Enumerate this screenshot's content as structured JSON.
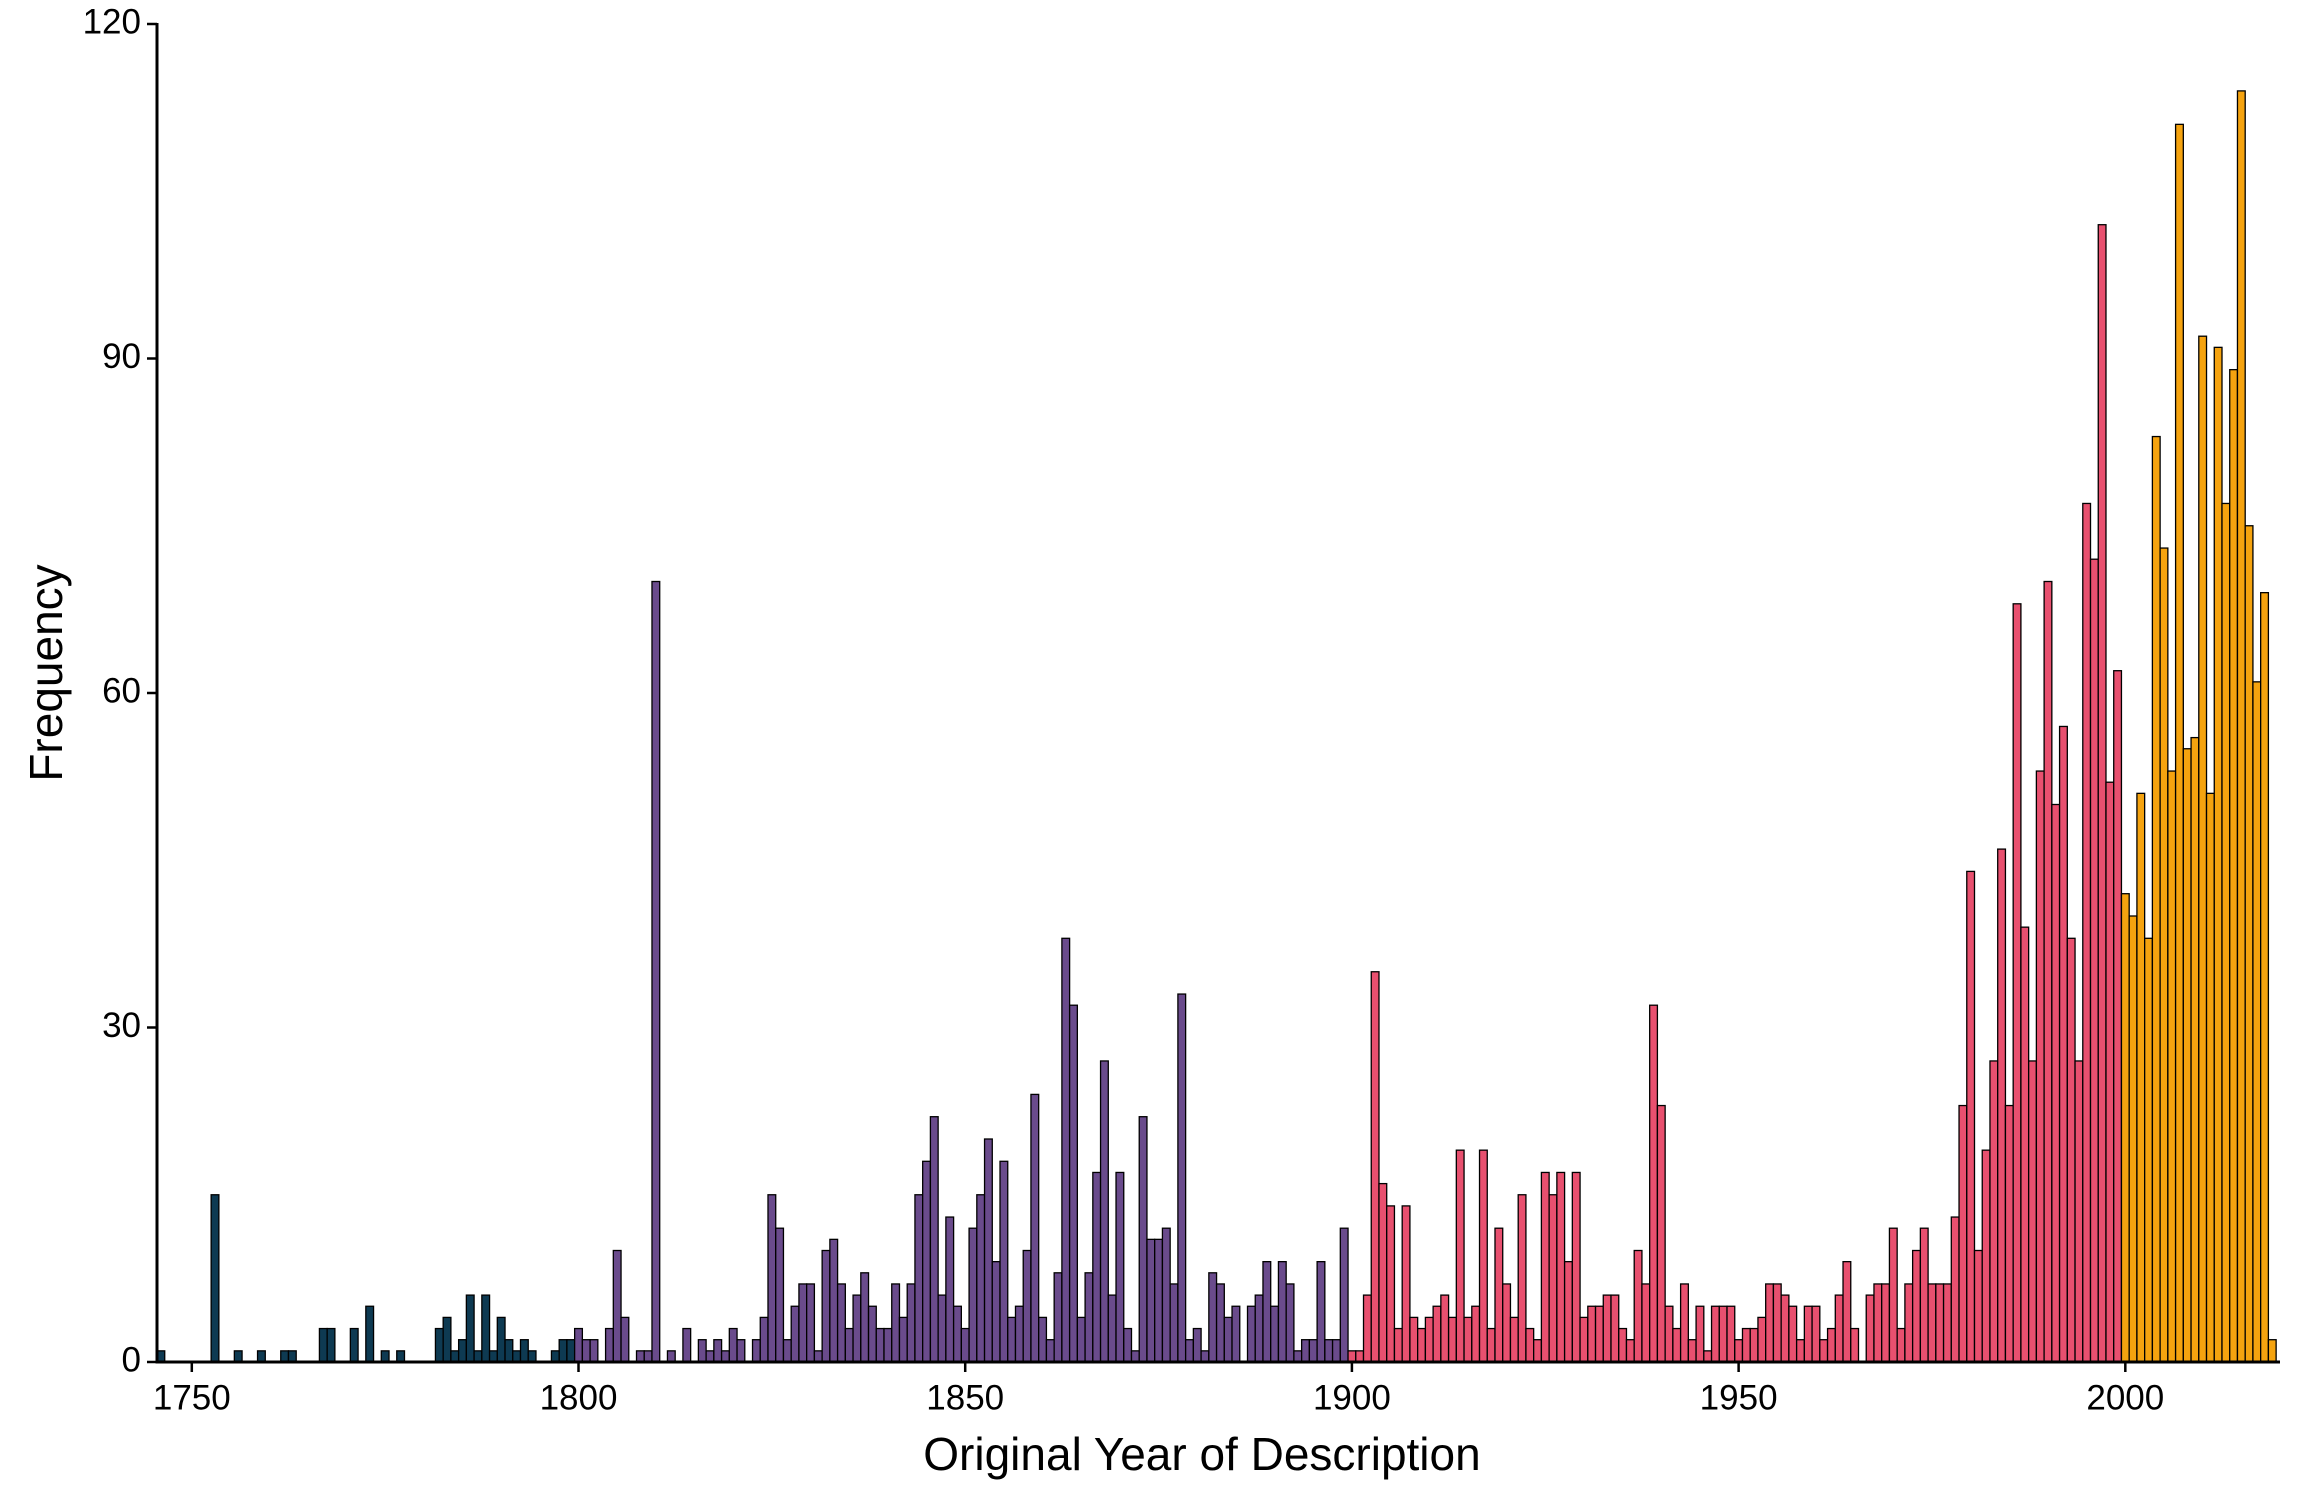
{
  "chart_data": {
    "type": "histogram",
    "x_label": "Original Year of Description",
    "y_label": "Frequency",
    "xlim": [
      1745.5,
      2020
    ],
    "ylim": [
      0,
      120
    ],
    "xticks": [
      1750,
      1800,
      1850,
      1900,
      1950,
      2000
    ],
    "yticks": [
      0,
      30,
      60,
      90,
      120
    ],
    "grid": false,
    "series": [
      {
        "color": "#0e3a52",
        "bins": [
          1745.5,
          1746.5,
          1747.5,
          1748.5,
          1749.5,
          1750.5,
          1751.5,
          1752.5,
          1753.5,
          1754.5,
          1755.5,
          1756.5,
          1757.5,
          1758.5,
          1759.5,
          1760.5,
          1761.5,
          1762.5,
          1763.5,
          1764.5,
          1765.5,
          1766.5,
          1767.5,
          1768.5,
          1769.5,
          1770.5,
          1771.5,
          1772.5,
          1773.5,
          1774.5,
          1775.5,
          1776.5,
          1777.5,
          1778.5,
          1779.5,
          1780.5,
          1781.5,
          1782.5,
          1783.5,
          1784.5,
          1785.5,
          1786.5,
          1787.5,
          1788.5,
          1789.5,
          1790.5,
          1791.5,
          1792.5,
          1793.5,
          1794.5,
          1795.5,
          1796.5,
          1797.5,
          1798.5,
          1799.5
        ],
        "values": [
          1,
          0,
          0,
          0,
          0,
          0,
          0,
          15,
          0,
          0,
          1,
          0,
          0,
          1,
          0,
          0,
          1,
          1,
          0,
          0,
          0,
          3,
          3,
          0,
          0,
          3,
          0,
          5,
          0,
          1,
          0,
          1,
          0,
          0,
          0,
          0,
          3,
          4,
          1,
          2,
          6,
          1,
          6,
          1,
          4,
          2,
          1,
          2,
          1,
          0,
          0,
          1,
          2,
          2
        ]
      },
      {
        "color": "#6a4b8c",
        "bins": [
          1799.5,
          1800.5,
          1801.5,
          1802.5,
          1803.5,
          1804.5,
          1805.5,
          1806.5,
          1807.5,
          1808.5,
          1809.5,
          1810.5,
          1811.5,
          1812.5,
          1813.5,
          1814.5,
          1815.5,
          1816.5,
          1817.5,
          1818.5,
          1819.5,
          1820.5,
          1821.5,
          1822.5,
          1823.5,
          1824.5,
          1825.5,
          1826.5,
          1827.5,
          1828.5,
          1829.5,
          1830.5,
          1831.5,
          1832.5,
          1833.5,
          1834.5,
          1835.5,
          1836.5,
          1837.5,
          1838.5,
          1839.5,
          1840.5,
          1841.5,
          1842.5,
          1843.5,
          1844.5,
          1845.5,
          1846.5,
          1847.5,
          1848.5,
          1849.5,
          1850.5,
          1851.5,
          1852.5,
          1853.5,
          1854.5,
          1855.5,
          1856.5,
          1857.5,
          1858.5,
          1859.5,
          1860.5,
          1861.5,
          1862.5,
          1863.5,
          1864.5,
          1865.5,
          1866.5,
          1867.5,
          1868.5,
          1869.5,
          1870.5,
          1871.5,
          1872.5,
          1873.5,
          1874.5,
          1875.5,
          1876.5,
          1877.5,
          1878.5,
          1879.5,
          1880.5,
          1881.5,
          1882.5,
          1883.5,
          1884.5,
          1885.5,
          1886.5,
          1887.5,
          1888.5,
          1889.5,
          1890.5,
          1891.5,
          1892.5,
          1893.5,
          1894.5,
          1895.5,
          1896.5,
          1897.5,
          1898.5,
          1899.5
        ],
        "values": [
          3,
          2,
          2,
          0,
          3,
          10,
          4,
          0,
          1,
          1,
          70,
          0,
          1,
          0,
          3,
          0,
          2,
          1,
          2,
          1,
          3,
          2,
          0,
          2,
          4,
          15,
          12,
          2,
          5,
          7,
          7,
          1,
          10,
          11,
          7,
          3,
          6,
          8,
          5,
          3,
          3,
          7,
          4,
          7,
          15,
          18,
          22,
          6,
          13,
          5,
          3,
          12,
          15,
          20,
          9,
          18,
          4,
          5,
          10,
          24,
          4,
          2,
          8,
          38,
          32,
          4,
          8,
          17,
          27,
          6,
          17,
          3,
          1,
          22,
          11,
          11,
          12,
          7,
          33,
          2,
          3,
          1,
          8,
          7,
          4,
          5,
          0,
          5,
          6,
          9,
          5,
          9,
          7,
          1,
          2,
          2,
          9,
          2,
          2,
          12
        ]
      },
      {
        "color": "#e8506f",
        "bins": [
          1899.5,
          1900.5,
          1901.5,
          1902.5,
          1903.5,
          1904.5,
          1905.5,
          1906.5,
          1907.5,
          1908.5,
          1909.5,
          1910.5,
          1911.5,
          1912.5,
          1913.5,
          1914.5,
          1915.5,
          1916.5,
          1917.5,
          1918.5,
          1919.5,
          1920.5,
          1921.5,
          1922.5,
          1923.5,
          1924.5,
          1925.5,
          1926.5,
          1927.5,
          1928.5,
          1929.5,
          1930.5,
          1931.5,
          1932.5,
          1933.5,
          1934.5,
          1935.5,
          1936.5,
          1937.5,
          1938.5,
          1939.5,
          1940.5,
          1941.5,
          1942.5,
          1943.5,
          1944.5,
          1945.5,
          1946.5,
          1947.5,
          1948.5,
          1949.5,
          1950.5,
          1951.5,
          1952.5,
          1953.5,
          1954.5,
          1955.5,
          1956.5,
          1957.5,
          1958.5,
          1959.5,
          1960.5,
          1961.5,
          1962.5,
          1963.5,
          1964.5,
          1965.5,
          1966.5,
          1967.5,
          1968.5,
          1969.5,
          1970.5,
          1971.5,
          1972.5,
          1973.5,
          1974.5,
          1975.5,
          1976.5,
          1977.5,
          1978.5,
          1979.5,
          1980.5,
          1981.5,
          1982.5,
          1983.5,
          1984.5,
          1985.5,
          1986.5,
          1987.5,
          1988.5,
          1989.5,
          1990.5,
          1991.5,
          1992.5,
          1993.5,
          1994.5,
          1995.5,
          1996.5,
          1997.5,
          1998.5,
          1999.5
        ],
        "values": [
          1,
          1,
          6,
          35,
          16,
          14,
          3,
          14,
          4,
          3,
          4,
          5,
          6,
          4,
          19,
          4,
          5,
          19,
          3,
          12,
          7,
          4,
          15,
          3,
          2,
          17,
          15,
          17,
          9,
          17,
          4,
          5,
          5,
          6,
          6,
          3,
          2,
          10,
          7,
          32,
          23,
          5,
          3,
          7,
          2,
          5,
          1,
          5,
          5,
          5,
          2,
          3,
          3,
          4,
          7,
          7,
          6,
          5,
          2,
          5,
          5,
          2,
          3,
          6,
          9,
          3,
          0,
          6,
          7,
          7,
          12,
          3,
          7,
          10,
          12,
          7,
          7,
          7,
          13,
          23,
          44,
          10,
          19,
          27,
          46,
          23,
          68,
          39,
          27,
          53,
          70,
          50,
          57,
          38,
          27,
          77,
          72,
          102,
          52,
          62
        ]
      },
      {
        "color": "#f5a30f",
        "bins": [
          1999.5,
          2000.5,
          2001.5,
          2002.5,
          2003.5,
          2004.5,
          2005.5,
          2006.5,
          2007.5,
          2008.5,
          2009.5,
          2010.5,
          2011.5,
          2012.5,
          2013.5,
          2014.5,
          2015.5,
          2016.5,
          2017.5,
          2018.5,
          2019.5
        ],
        "values": [
          42,
          40,
          51,
          38,
          83,
          73,
          53,
          111,
          55,
          56,
          92,
          51,
          91,
          77,
          89,
          114,
          75,
          61,
          69,
          2
        ]
      }
    ]
  }
}
